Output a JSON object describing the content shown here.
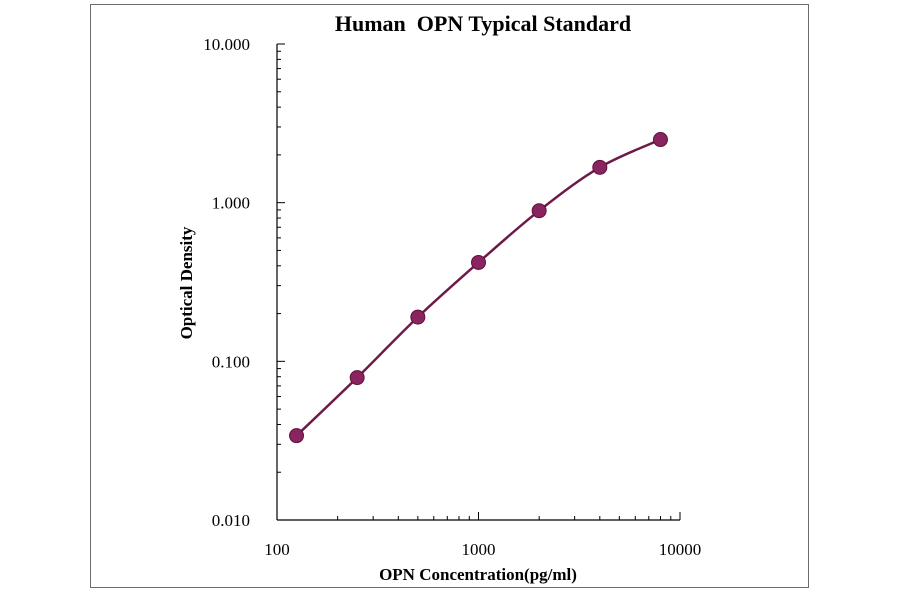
{
  "chart_data": {
    "type": "line",
    "title": "Human  OPN Typical Standard",
    "xlabel": "OPN Concentration(pg/ml)",
    "ylabel": "Optical Density",
    "xscale": "log",
    "yscale": "log",
    "xlim": [
      100,
      10000
    ],
    "ylim": [
      0.01,
      10
    ],
    "x_tick_labels": [
      "100",
      "1000",
      "10000"
    ],
    "y_tick_labels": [
      "10.000",
      "1.000",
      "0.100",
      "0.010"
    ],
    "series": [
      {
        "x": [
          125,
          250,
          500,
          1000,
          2000,
          4000,
          8000
        ],
        "y": [
          0.034,
          0.079,
          0.19,
          0.42,
          0.89,
          1.67,
          2.5
        ]
      }
    ],
    "grid": false,
    "colors": {
      "series": "#8a2460",
      "line": "#6e1a48"
    }
  }
}
